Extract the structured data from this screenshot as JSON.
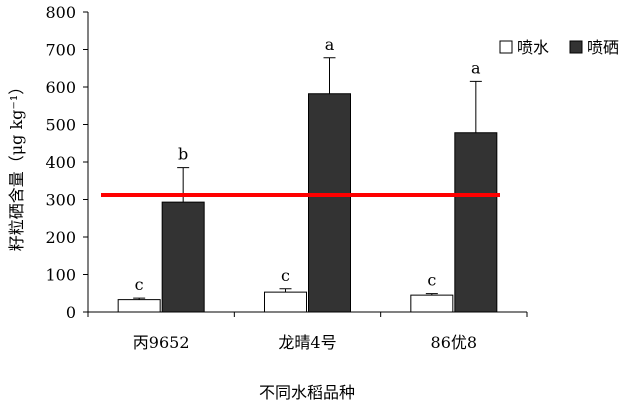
{
  "chart_data": {
    "type": "bar",
    "xlabel": "不同水稻品种",
    "ylabel": "籽粒硒含量（μg kg⁻¹）",
    "ylim": [
      0,
      800
    ],
    "yticks": [
      0,
      100,
      200,
      300,
      400,
      500,
      600,
      700,
      800
    ],
    "categories": [
      "丙9652",
      "龙晴4号",
      "86优8"
    ],
    "series": [
      {
        "name": "喷水",
        "color": "#ffffff",
        "values": [
          33,
          53,
          45
        ],
        "errors": [
          4,
          9,
          4
        ],
        "labels": [
          "c",
          "c",
          "c"
        ]
      },
      {
        "name": "喷硒",
        "color": "#333333",
        "values": [
          293,
          582,
          478
        ],
        "errors": [
          92,
          96,
          137
        ],
        "labels": [
          "b",
          "a",
          "a"
        ]
      }
    ],
    "reference_line": {
      "value": 312,
      "color": "#ff0000"
    },
    "legend_position": "top-right",
    "grid": false
  }
}
